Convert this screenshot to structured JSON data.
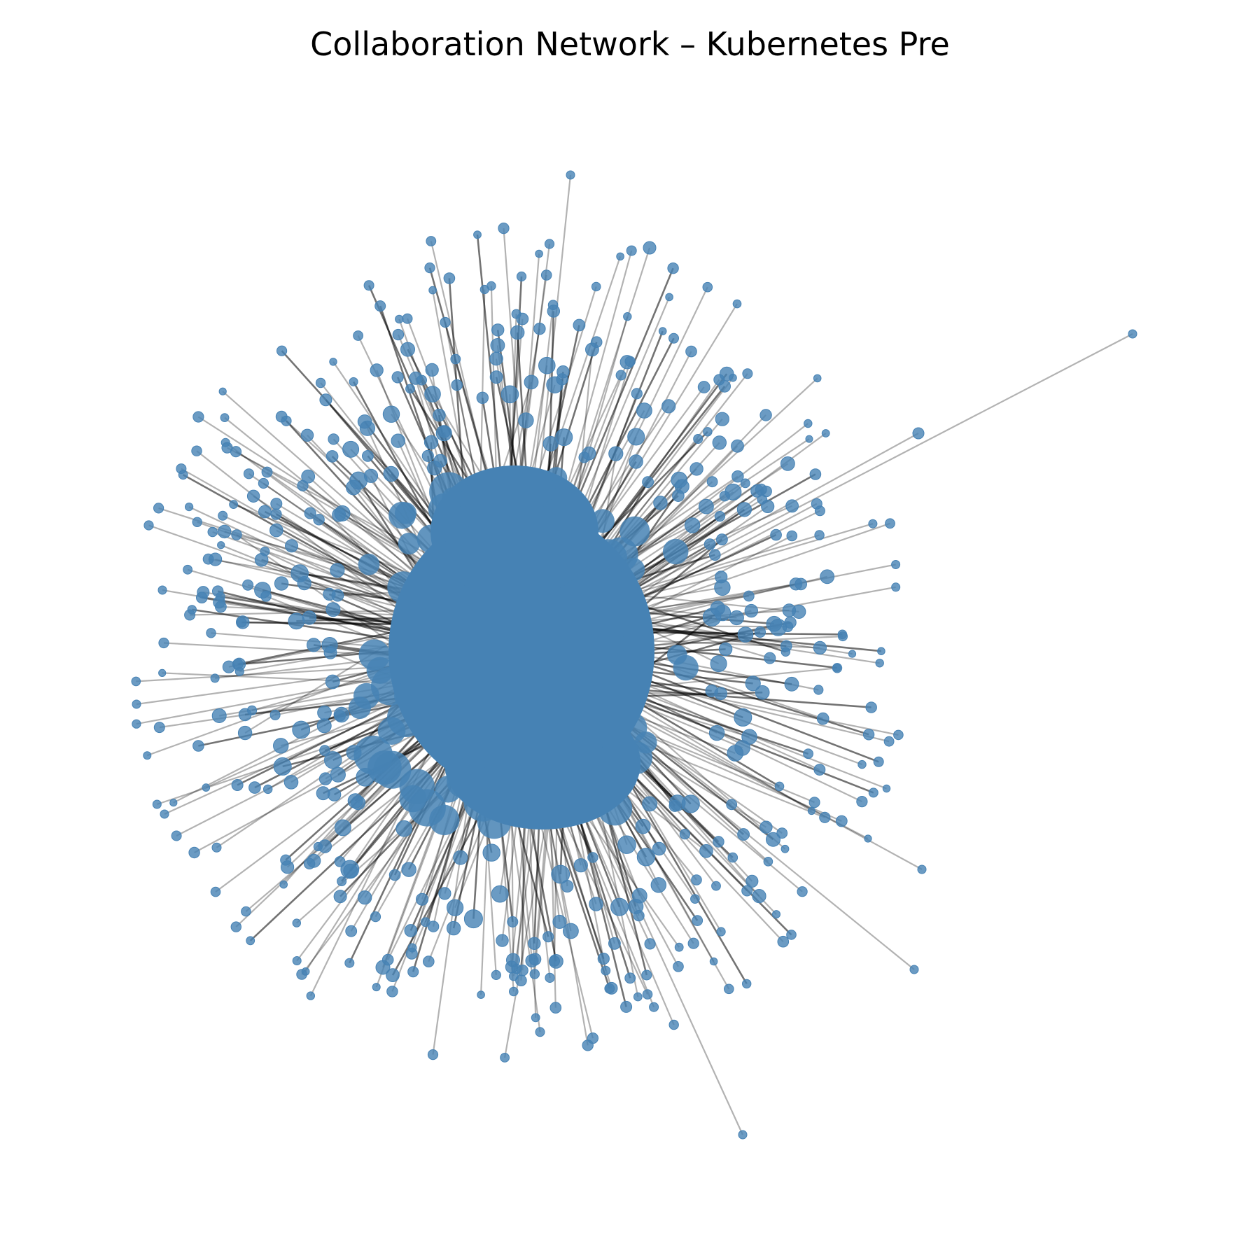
{
  "title": "Collaboration Network – Kubernetes Pre",
  "diagram": {
    "type": "force-directed network",
    "node_color": "#4682b4",
    "node_opacity": 0.8,
    "edge_color": "#000000",
    "edge_opacity": 0.3,
    "axes_visible": false,
    "legend": "none"
  }
}
